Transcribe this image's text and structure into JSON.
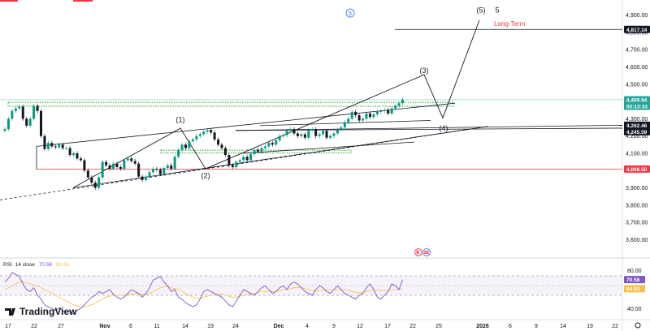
{
  "chart_data": [
    {
      "type": "candlestick",
      "title": "",
      "ylim": [
        3550,
        4950
      ],
      "y_ticks": [
        "4,900.00",
        "4,800.00",
        "4,700.00",
        "4,600.00",
        "4,500.00",
        "4,400.00",
        "4,300.00",
        "4,200.00",
        "4,100.00",
        "4,000.00",
        "3,900.00",
        "3,800.00",
        "3,700.00",
        "3,600.00"
      ],
      "x_ticks": [
        "17",
        "22",
        "27",
        "Nov",
        "6",
        "11",
        "14",
        "19",
        "24",
        "Dec",
        "4",
        "9",
        "12",
        "17",
        "22",
        "25",
        "2026",
        "6",
        "9",
        "14",
        "19",
        "22"
      ],
      "price_tags": [
        {
          "label": "4,817.14",
          "value": 4817.14,
          "style": "dark"
        },
        {
          "label": "4,409.94",
          "value": 4409.94,
          "style": "teal"
        },
        {
          "label": "02:13:33",
          "value": 4385,
          "style": "teal"
        },
        {
          "label": "4,262.46",
          "value": 4262.46,
          "style": "dark"
        },
        {
          "label": "4,245.59",
          "value": 4245.59,
          "style": "dark"
        },
        {
          "label": "4,008.50",
          "value": 4008.5,
          "style": "red"
        }
      ],
      "wave_labels": [
        {
          "label": "(1)",
          "x_index": 39,
          "value": 4295
        },
        {
          "label": "(2)",
          "x_index": 43,
          "value": 3970
        },
        {
          "label": "(3)",
          "x_index": 94,
          "value": 4580
        },
        {
          "label": "(4)",
          "x_index": 99,
          "value": 4245
        },
        {
          "label": "(5)",
          "x_index": 107,
          "value": 4930
        },
        {
          "label": "5",
          "x_index": 77,
          "value": 4930
        }
      ],
      "annotation": "Long-Term",
      "series": [
        {
          "values": [
            4240,
            4300,
            4345,
            4360,
            4370,
            4300,
            4260,
            4300,
            4375,
            4345,
            4200,
            4125,
            4160,
            4140,
            4135,
            4150,
            4130,
            4130,
            4090,
            4100,
            4070,
            4060,
            4000,
            3960,
            3930,
            3900,
            3960,
            4050,
            4030,
            4010,
            4040,
            4020,
            4010,
            4060,
            4070,
            4055,
            4040,
            3965,
            3945,
            3965,
            3990,
            4010,
            4005,
            3980,
            4015,
            4030,
            4010,
            4080,
            4120,
            4150,
            4130,
            4170,
            4180,
            4200,
            4210,
            4225,
            4235,
            4220,
            4180,
            4150,
            4130,
            4090,
            4030,
            4020,
            4050,
            4060,
            4080,
            4060,
            4095,
            4120,
            4110,
            4130,
            4140,
            4160,
            4150,
            4175,
            4200,
            4205,
            4230,
            4240,
            4215,
            4200,
            4210,
            4190,
            4235,
            4240,
            4200,
            4210,
            4230,
            4190,
            4200,
            4215,
            4235,
            4250,
            4280,
            4300,
            4340,
            4320,
            4290,
            4300,
            4330,
            4310,
            4325,
            4340,
            4345,
            4350,
            4330,
            4360,
            4375,
            4390,
            4409.94
          ]
        }
      ]
    },
    {
      "type": "line",
      "title": "",
      "ylim": [
        30,
        90
      ],
      "y_ticks": [
        "80.00",
        "60.00",
        "40.00"
      ],
      "rsi_values": {
        "rsi": "70.58",
        "sma": "60.93"
      },
      "legend": {
        "name": "RSI",
        "params": "14 close"
      },
      "series": [
        {
          "values": [
            68,
            72,
            78,
            76,
            74,
            66,
            60,
            58,
            62,
            54,
            50,
            44,
            42,
            40,
            38,
            41,
            38,
            36,
            37,
            34,
            38,
            40,
            44,
            48,
            52,
            54,
            58,
            56,
            58,
            60,
            55,
            52,
            50,
            52,
            56,
            60,
            58,
            56,
            52,
            56,
            62,
            70,
            72,
            74,
            68,
            64,
            58,
            60,
            52,
            50,
            46,
            44,
            42,
            44,
            50,
            58,
            60,
            58,
            56,
            54,
            52,
            48,
            44,
            42,
            48,
            54,
            60,
            58,
            56,
            54,
            58,
            62,
            64,
            60,
            56,
            58,
            62,
            64,
            60,
            66,
            68,
            66,
            62,
            58,
            56,
            54,
            60,
            64,
            62,
            58,
            56,
            60,
            64,
            60,
            56,
            54,
            52,
            50,
            54,
            56,
            62,
            66,
            60,
            52,
            50,
            54,
            58,
            66,
            64,
            60,
            70.58
          ]
        },
        {
          "values": [
            60,
            62,
            64,
            66,
            68,
            68,
            67,
            66,
            65,
            64,
            62,
            60,
            58,
            56,
            54,
            52,
            50,
            48,
            46,
            44,
            43,
            42,
            42,
            43,
            44,
            46,
            48,
            50,
            52,
            53,
            54,
            54,
            54,
            54,
            55,
            55,
            56,
            56,
            55,
            55,
            56,
            58,
            60,
            62,
            63,
            63,
            62,
            61,
            60,
            58,
            56,
            54,
            52,
            51,
            51,
            52,
            53,
            54,
            55,
            55,
            55,
            54,
            53,
            52,
            52,
            53,
            54,
            55,
            55,
            56,
            57,
            58,
            58,
            58,
            58,
            58,
            59,
            60,
            60,
            61,
            62,
            62,
            62,
            61,
            60,
            59,
            59,
            59,
            60,
            60,
            60,
            60,
            60,
            60,
            60,
            59,
            58,
            57,
            57,
            57,
            58,
            59,
            60,
            60,
            59,
            59,
            59,
            60,
            60,
            60,
            60.93
          ]
        }
      ]
    }
  ],
  "branding": {
    "logo_text": "TradingView"
  },
  "colors": {
    "up": "#089981",
    "down": "#131722",
    "teal_tag": "#26a69a",
    "dark_tag": "#131722",
    "red_tag": "#f23645",
    "rsi_line": "#7e57c2",
    "rsi_sma": "#f5c146",
    "zone_green": "#4caf50",
    "long_term_text": "#f23645"
  }
}
